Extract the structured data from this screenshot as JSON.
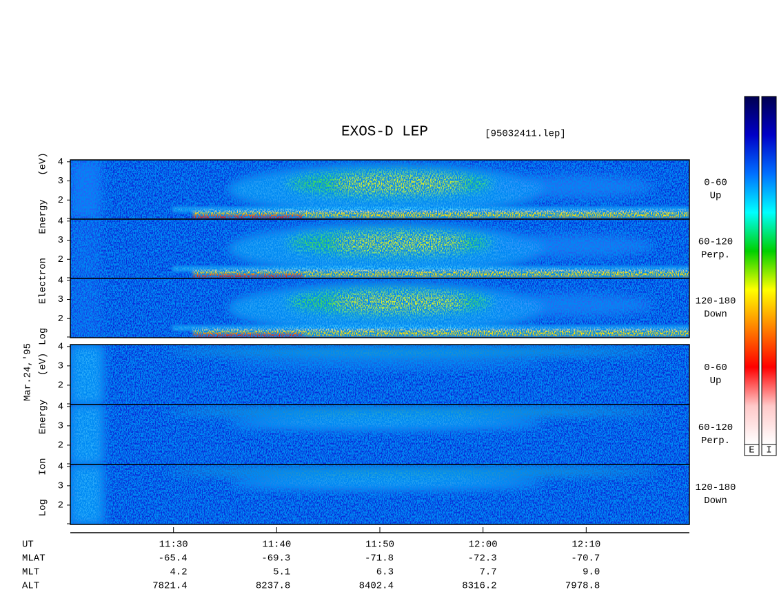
{
  "chart_data": {
    "type": "spectrogram",
    "title": "EXOS-D LEP",
    "file_label": "[95032411.lep]",
    "date_label": "Mar.24,'95",
    "x_label": "UT",
    "xlim": [
      680,
      740
    ],
    "xticks": [
      {
        "value": 690,
        "label": "11:30"
      },
      {
        "value": 700,
        "label": "11:40"
      },
      {
        "value": 710,
        "label": "11:50"
      },
      {
        "value": 720,
        "label": "12:00"
      },
      {
        "value": 730,
        "label": "12:10"
      }
    ],
    "ylim": [
      1,
      4.1
    ],
    "yticks": [
      2,
      3,
      4
    ],
    "groups": [
      {
        "y_label": "Log Electron Energy (eV)",
        "colorbar_label": "E",
        "panels": [
          {
            "pitch_angle": "0-60",
            "direction": "Up"
          },
          {
            "pitch_angle": "60-120",
            "direction": "Perp."
          },
          {
            "pitch_angle": "120-180",
            "direction": "Down"
          }
        ]
      },
      {
        "y_label": "Log Ion Energy (eV)",
        "colorbar_label": "I",
        "panels": [
          {
            "pitch_angle": "0-60",
            "direction": "Up"
          },
          {
            "pitch_angle": "60-120",
            "direction": "Perp."
          },
          {
            "pitch_angle": "120-180",
            "direction": "Down"
          }
        ]
      }
    ],
    "ephemeris": [
      {
        "label": "MLAT",
        "values": [
          "-65.4",
          "-69.3",
          "-71.8",
          "-72.3",
          "-70.7"
        ]
      },
      {
        "label": "MLT",
        "values": [
          "4.2",
          "5.1",
          "6.3",
          "7.7",
          "9.0"
        ]
      },
      {
        "label": "ALT",
        "values": [
          "7821.4",
          "8237.8",
          "8402.4",
          "8316.2",
          "7978.8"
        ]
      }
    ],
    "colormap": [
      "#ffffff",
      "#ffc8c8",
      "#ff0000",
      "#ff8000",
      "#ffff00",
      "#00d000",
      "#00ffff",
      "#0070ff",
      "#0000c8",
      "#000050"
    ]
  }
}
